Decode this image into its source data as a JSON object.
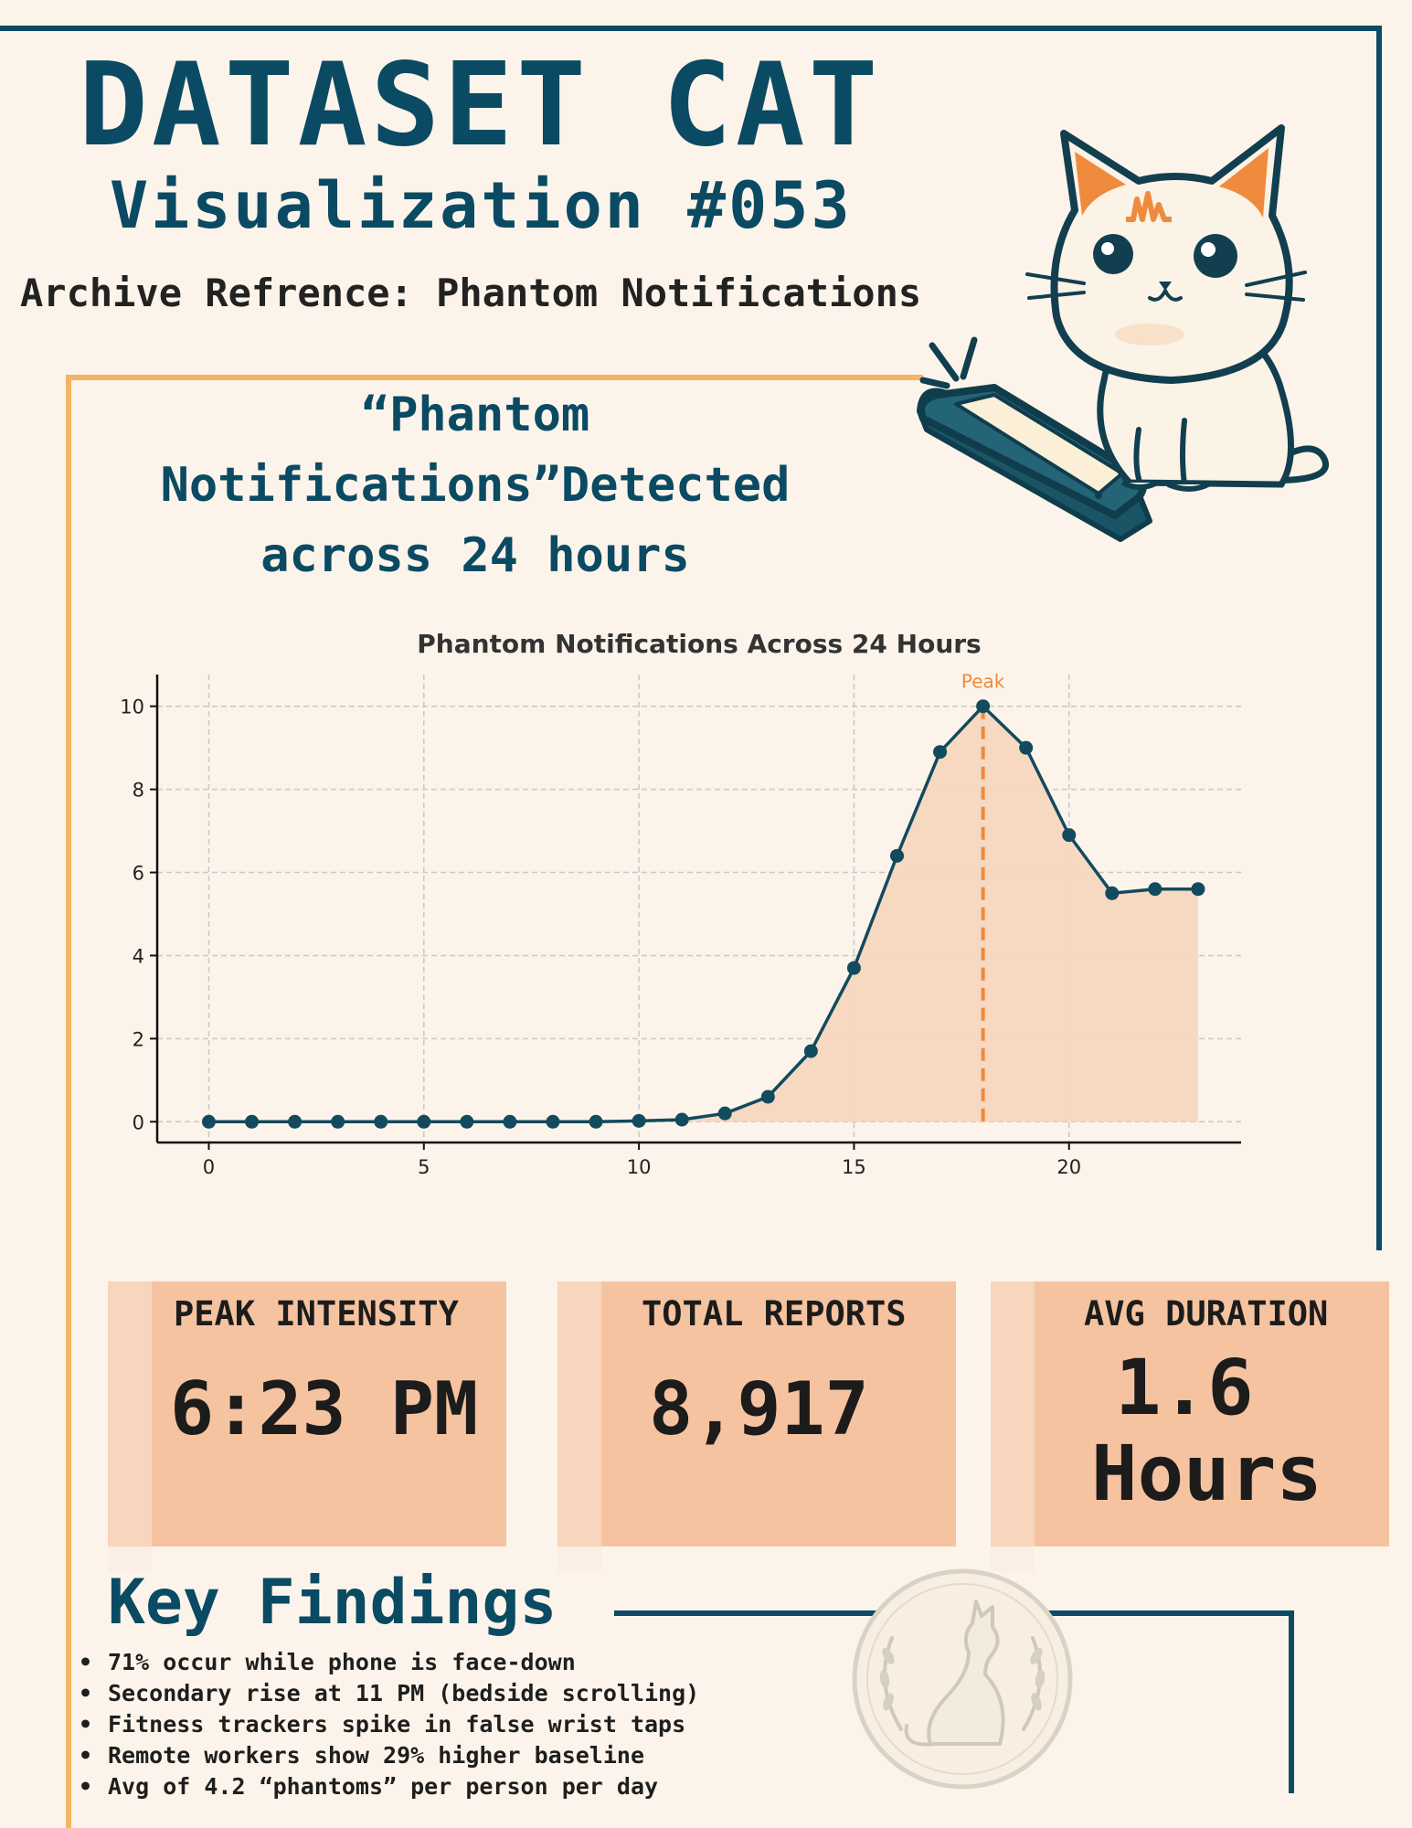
{
  "header": {
    "title": "DATASET CAT",
    "subtitle": "Visualization #053",
    "archive": "Archive Refrence: Phantom Notifications"
  },
  "headline": {
    "line1": "“Phantom",
    "line2": "Notifications”Detected",
    "line3": "across 24 hours"
  },
  "chart_data": {
    "type": "line",
    "title": "Phantom Notifications Across 24 Hours",
    "xlabel": "",
    "ylabel": "",
    "x": [
      0,
      1,
      2,
      3,
      4,
      5,
      6,
      7,
      8,
      9,
      10,
      11,
      12,
      13,
      14,
      15,
      16,
      17,
      18,
      19,
      20,
      21,
      22,
      23
    ],
    "values": [
      0,
      0,
      0,
      0,
      0,
      0,
      0,
      0,
      0,
      0,
      0.02,
      0.05,
      0.2,
      0.6,
      1.7,
      3.7,
      6.4,
      8.9,
      10,
      9.0,
      6.9,
      5.5,
      5.6,
      5.6
    ],
    "xlim": [
      -1.2,
      24
    ],
    "ylim": [
      -0.5,
      10.5
    ],
    "xticks": [
      0,
      5,
      10,
      15,
      20
    ],
    "yticks": [
      0,
      2,
      4,
      6,
      8,
      10
    ],
    "grid": true,
    "fill_under": true,
    "annotation": {
      "x": 18,
      "label": "Peak"
    },
    "colors": {
      "line": "#124a5e",
      "fill": "#f7d6bf",
      "peak": "#ee8a3c",
      "grid": "#c8c8c8"
    }
  },
  "stats": [
    {
      "label": "PEAK INTENSITY",
      "value": "6:23 PM"
    },
    {
      "label": "TOTAL REPORTS",
      "value": "8,917"
    },
    {
      "label": "AVG DURATION",
      "value_line1": "1.6",
      "value_line2": "Hours"
    }
  ],
  "findings": {
    "title": "Key Findings",
    "items": [
      "71% occur while phone is face-down",
      "Secondary rise at 11 PM (bedside scrolling)",
      "Fitness trackers spike in false wrist taps",
      "Remote workers show 29% higher baseline",
      "Avg of 4.2 “phantoms” per person per day"
    ]
  },
  "colors": {
    "navy": "#0b4a63",
    "gold": "#f3b562",
    "card": "#f6c3a0",
    "background": "#fcf4ea",
    "accent": "#ee8a3c"
  },
  "icons": [
    "cat-illustration",
    "phone-icon",
    "cat-seal-emblem"
  ]
}
